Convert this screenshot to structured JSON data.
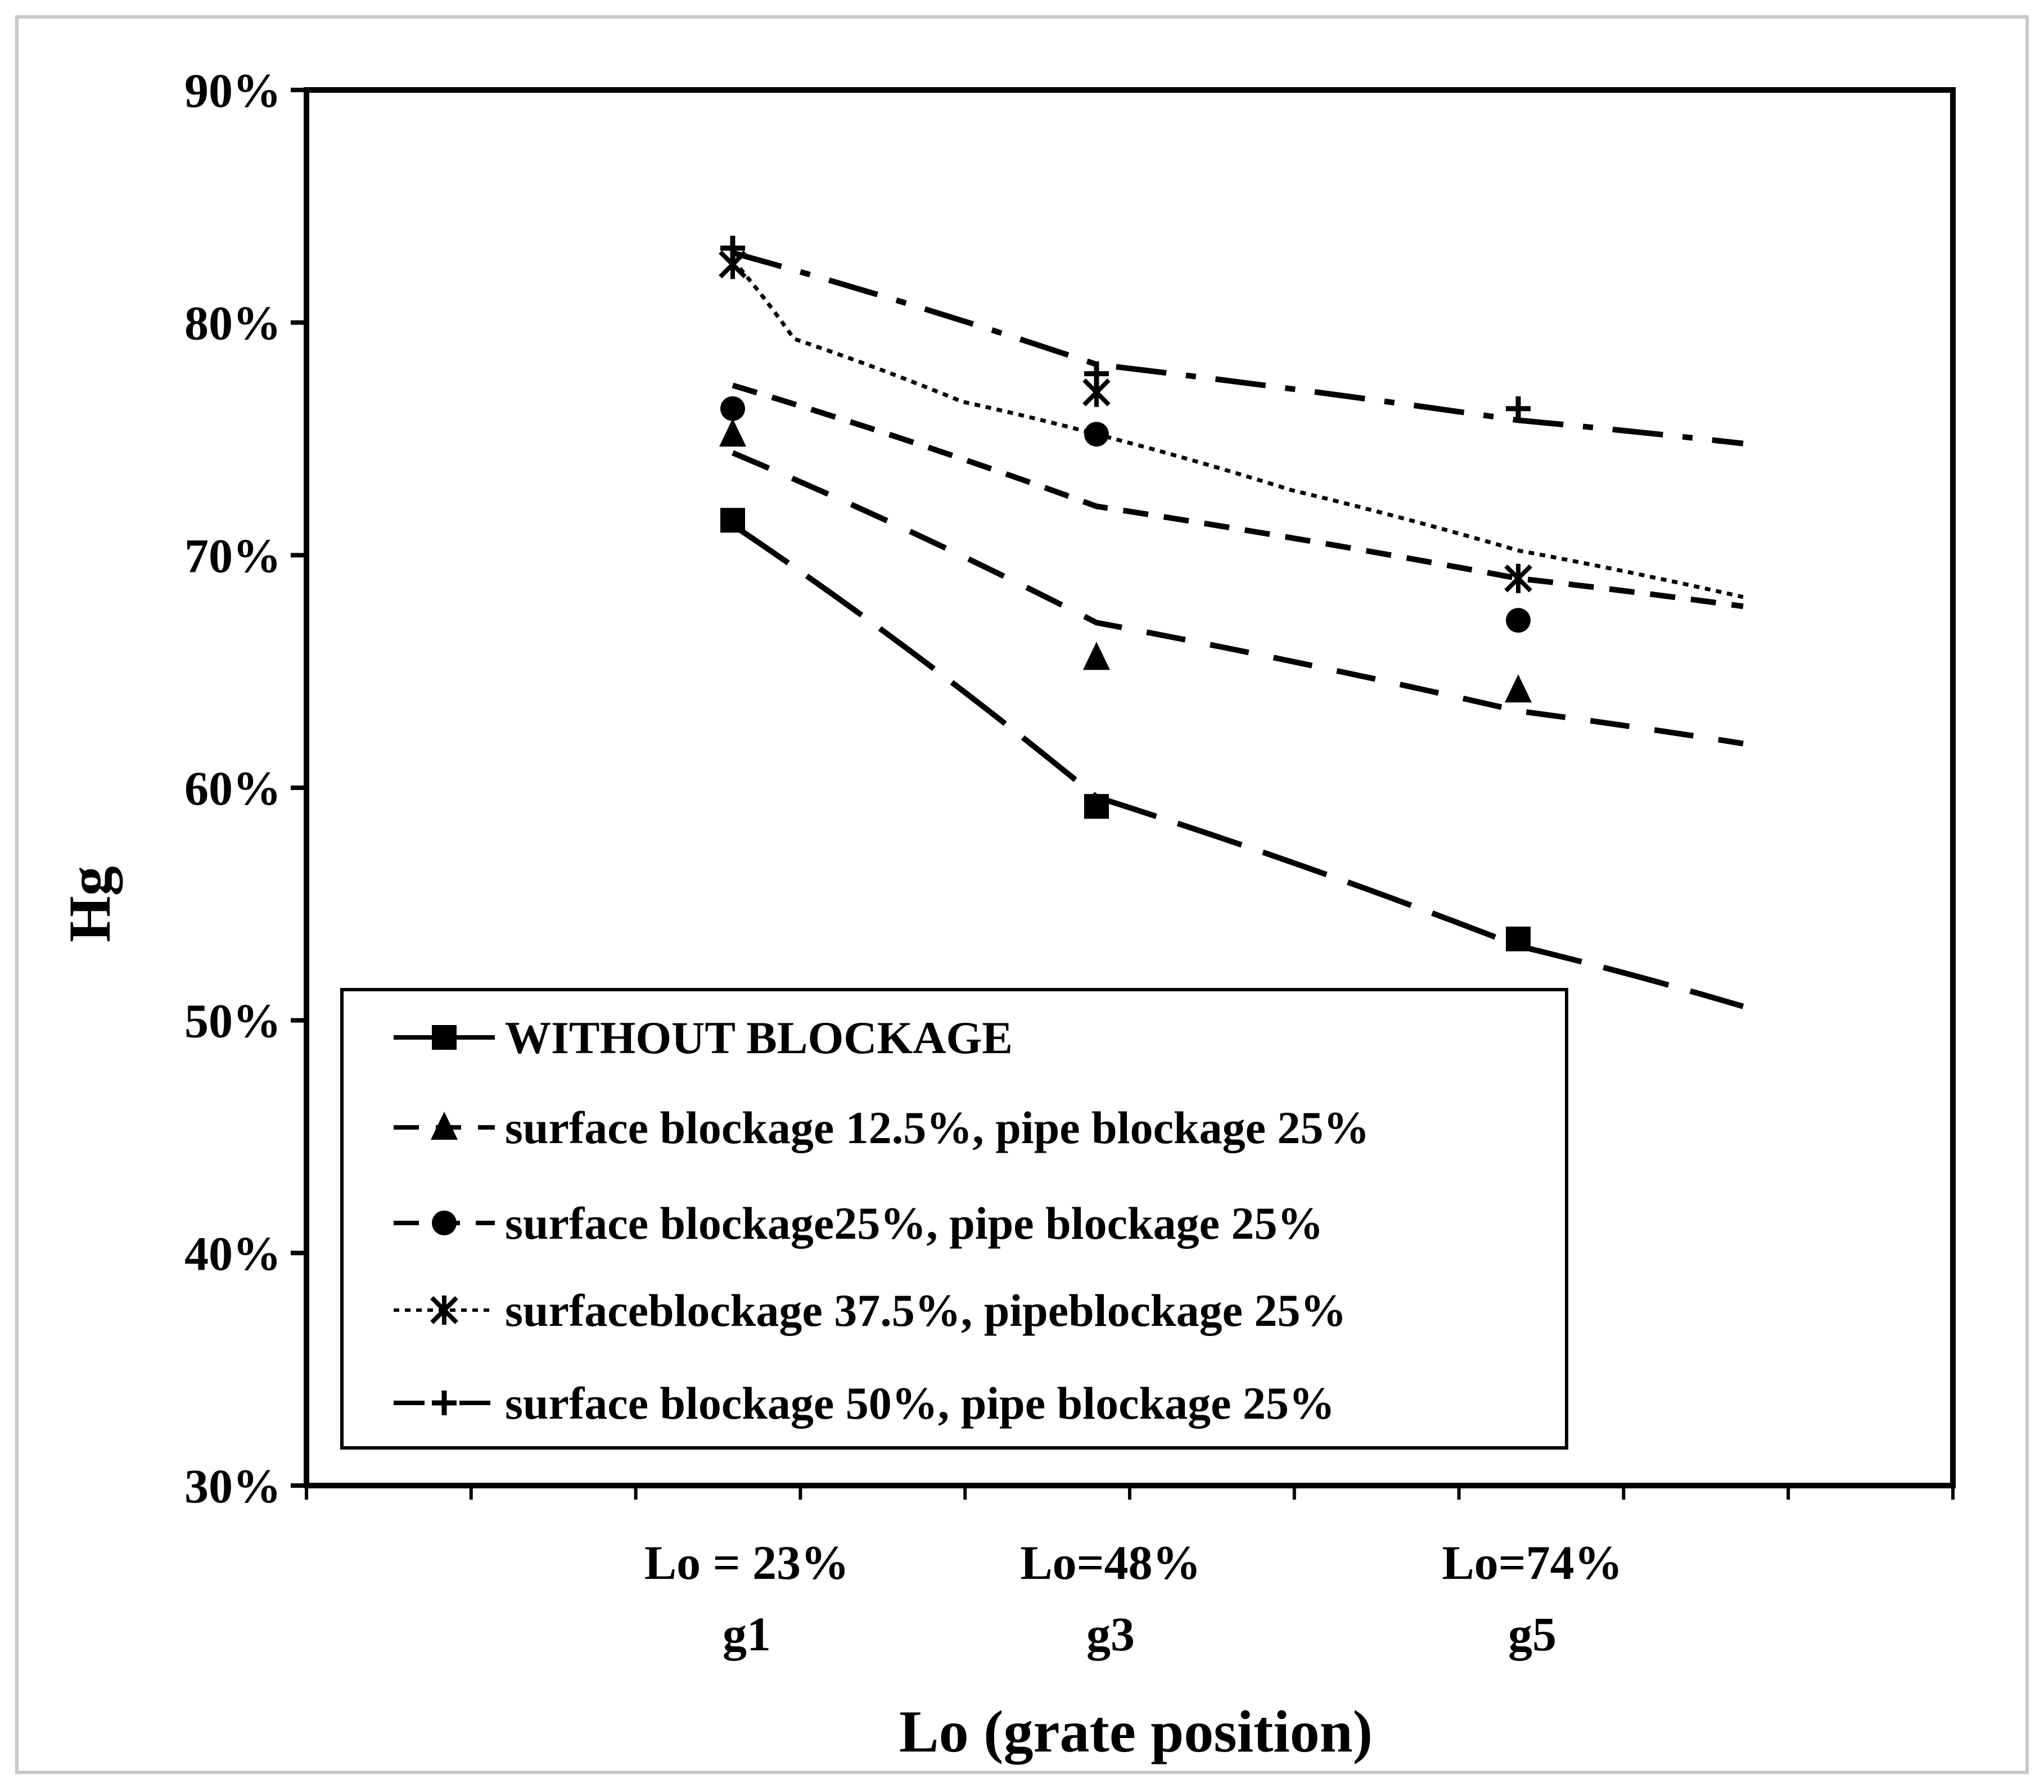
{
  "chart_data": {
    "type": "scatter",
    "xlabel": "Lo (grate position)",
    "ylabel": "Hg",
    "ylim": [
      0.3,
      0.9
    ],
    "ytick_values": [
      0.3,
      0.4,
      0.5,
      0.6,
      0.7,
      0.8,
      0.9
    ],
    "yticks": [
      "30%",
      "40%",
      "50%",
      "60%",
      "70%",
      "80%",
      "90%"
    ],
    "x_categories": [
      {
        "x": 23,
        "label": "Lo = 23%",
        "sublabel": "g1"
      },
      {
        "x": 48,
        "label": "Lo=48%",
        "sublabel": "g3"
      },
      {
        "x": 74,
        "label": "Lo=74%",
        "sublabel": "g5"
      }
    ],
    "xlim": [
      0,
      100
    ],
    "grid": false,
    "legend_position": "bottom-left inside plot",
    "series": [
      {
        "name": "WITHOUT BLOCKAGE",
        "marker": "square",
        "line_style": "solid",
        "color": "#000000",
        "x": [
          23,
          48,
          74
        ],
        "y": [
          0.715,
          0.592,
          0.535
        ],
        "trend": {
          "style": "long-dash",
          "x": [
            23,
            48,
            74,
            88
          ],
          "y": [
            0.713,
            0.596,
            0.532,
            0.506
          ]
        }
      },
      {
        "name": "surface blockage 12.5%, pipe blockage 25%",
        "marker": "triangle",
        "line_style": "dash",
        "color": "#000000",
        "x": [
          23,
          48,
          74
        ],
        "y": [
          0.752,
          0.656,
          0.642
        ],
        "trend": {
          "style": "dash",
          "x": [
            23,
            48,
            74,
            88
          ],
          "y": [
            0.744,
            0.671,
            0.633,
            0.619
          ]
        }
      },
      {
        "name": "surface blockage25%, pipe blockage 25%",
        "marker": "circle",
        "line_style": "dash-short",
        "color": "#000000",
        "x": [
          23,
          48,
          74
        ],
        "y": [
          0.763,
          0.752,
          0.672
        ],
        "trend": {
          "style": "dash-short",
          "x": [
            23,
            48,
            74,
            88
          ],
          "y": [
            0.773,
            0.721,
            0.69,
            0.678
          ]
        }
      },
      {
        "name": "surfaceblockage 37.5%, pipeblockage 25%",
        "marker": "x-star",
        "line_style": "dotted",
        "color": "#000000",
        "x": [
          23,
          48,
          74
        ],
        "y": [
          0.825,
          0.77,
          0.69
        ],
        "trend": {
          "style": "dotted",
          "x": [
            23,
            30,
            40,
            48,
            60,
            74,
            88
          ],
          "y": [
            0.827,
            0.793,
            0.766,
            0.752,
            0.728,
            0.702,
            0.682
          ]
        }
      },
      {
        "name": "surface blockage 50%, pipe blockage 25%",
        "marker": "plus",
        "line_style": "dash-dot",
        "color": "#000000",
        "x": [
          23,
          48,
          74
        ],
        "y": [
          0.832,
          0.778,
          0.763
        ],
        "trend": {
          "style": "dash-dot",
          "x": [
            23,
            48,
            74,
            88
          ],
          "y": [
            0.83,
            0.782,
            0.758,
            0.748
          ]
        }
      }
    ]
  }
}
